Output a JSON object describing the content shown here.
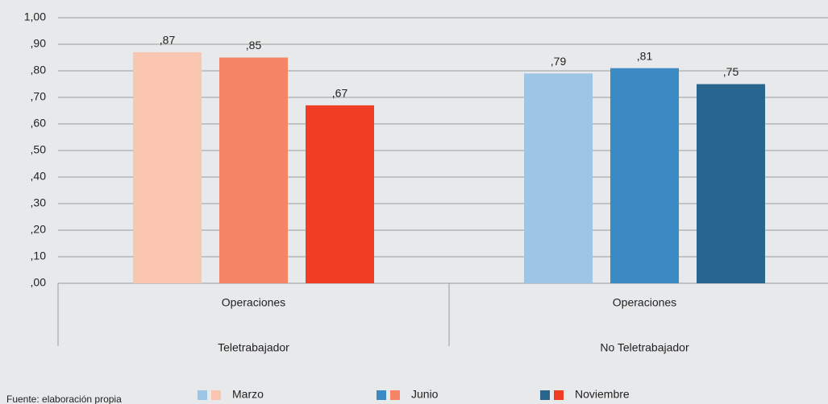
{
  "chart_data": {
    "type": "bar",
    "categories": [
      "Operaciones",
      "Operaciones"
    ],
    "category_groups": [
      "Teletrabajador",
      "No Teletrabajador"
    ],
    "series": [
      {
        "name": "Marzo",
        "colors": [
          "#fbc6b1",
          "#9dc6e6"
        ],
        "values": [
          0.87,
          0.79
        ],
        "value_labels": [
          ",87",
          ",79"
        ]
      },
      {
        "name": "Junio",
        "colors": [
          "#f58566",
          "#3b8ac4"
        ],
        "values": [
          0.85,
          0.81
        ],
        "value_labels": [
          ",85",
          ",81"
        ]
      },
      {
        "name": "Noviembre",
        "colors": [
          "#ef3e23",
          "#28668f"
        ],
        "values": [
          0.67,
          0.75
        ],
        "value_labels": [
          ",67",
          ",75"
        ]
      }
    ],
    "ylim": [
      0,
      1
    ],
    "yticks": [
      {
        "value": 0,
        "label": ",00"
      },
      {
        "value": 0.1,
        "label": ",10"
      },
      {
        "value": 0.2,
        "label": ",20"
      },
      {
        "value": 0.3,
        "label": ",30"
      },
      {
        "value": 0.4,
        "label": ",40"
      },
      {
        "value": 0.5,
        "label": ",50"
      },
      {
        "value": 0.6,
        "label": ",60"
      },
      {
        "value": 0.7,
        "label": ",70"
      },
      {
        "value": 0.8,
        "label": ",80"
      },
      {
        "value": 0.9,
        "label": ",90"
      },
      {
        "value": 1,
        "label": "1,00"
      }
    ],
    "grid": true,
    "source": "Fuente: elaboración propia"
  }
}
